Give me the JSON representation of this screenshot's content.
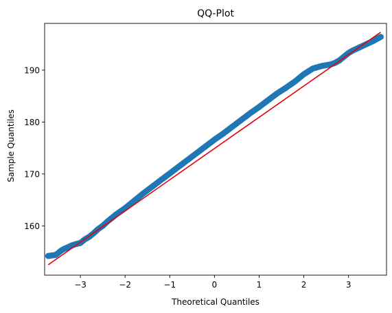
{
  "chart_data": {
    "type": "scatter",
    "title": "QQ-Plot",
    "xlabel": "Theoretical Quantiles",
    "ylabel": "Sample Quantiles",
    "xlim": [
      -3.8,
      3.85
    ],
    "ylim": [
      150.5,
      199.0
    ],
    "xticks": [
      -3,
      -2,
      -1,
      0,
      1,
      2,
      3
    ],
    "yticks": [
      160,
      170,
      180,
      190
    ],
    "grid": false,
    "legend": "none",
    "colors": {
      "points": "#1f77b4",
      "line": "#e8000b"
    },
    "series": [
      {
        "kind": "points",
        "x": [
          -3.72,
          -3.55,
          -3.45,
          -3.38,
          -3.3,
          -3.2,
          -3.1,
          -3.0,
          -2.9,
          -2.8,
          -2.7,
          -2.6,
          -2.5,
          -2.4,
          -2.2,
          -2.0,
          -1.8,
          -1.6,
          -1.4,
          -1.2,
          -1.0,
          -0.8,
          -0.6,
          -0.4,
          -0.2,
          0.0,
          0.2,
          0.4,
          0.6,
          0.8,
          1.0,
          1.2,
          1.4,
          1.6,
          1.8,
          2.0,
          2.2,
          2.4,
          2.6,
          2.7,
          2.8,
          2.9,
          3.0,
          3.1,
          3.2,
          3.3,
          3.4,
          3.55,
          3.72
        ],
        "y": [
          154.2,
          154.4,
          155.1,
          155.5,
          155.8,
          156.2,
          156.5,
          156.7,
          157.4,
          157.9,
          158.6,
          159.4,
          160.0,
          160.8,
          162.2,
          163.4,
          164.8,
          166.2,
          167.5,
          168.8,
          170.1,
          171.4,
          172.7,
          174.0,
          175.3,
          176.6,
          177.8,
          179.1,
          180.4,
          181.7,
          182.9,
          184.2,
          185.5,
          186.6,
          187.8,
          189.2,
          190.3,
          190.8,
          191.1,
          191.4,
          191.9,
          192.6,
          193.3,
          193.8,
          194.2,
          194.6,
          195.0,
          195.6,
          196.4
        ]
      },
      {
        "kind": "line",
        "x": [
          -3.72,
          3.72
        ],
        "y": [
          152.5,
          197.3
        ]
      }
    ]
  }
}
